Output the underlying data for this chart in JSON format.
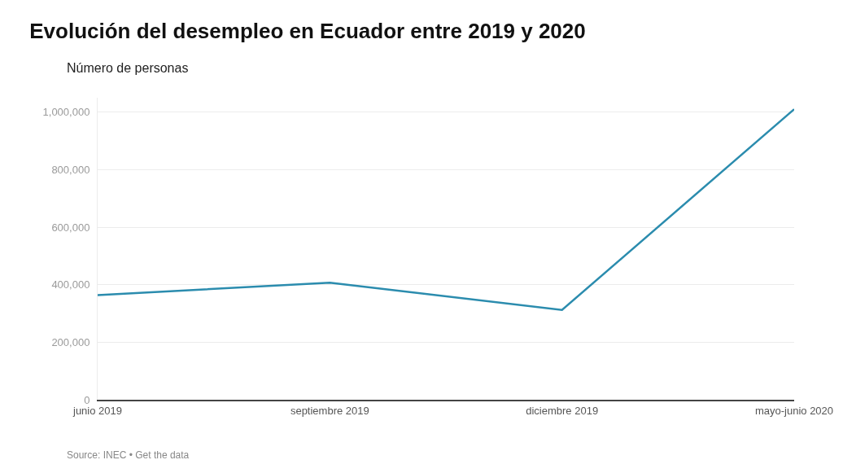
{
  "chart_data": {
    "type": "line",
    "title": "Evolución del desempleo en Ecuador entre 2019 y 2020",
    "subtitle": "Número de personas",
    "categories": [
      "junio 2019",
      "septiembre 2019",
      "diciembre 2019",
      "mayo-junio 2020"
    ],
    "series": [
      {
        "color": "#2b8cae",
        "values": [
          364000,
          407000,
          312000,
          1010000
        ]
      }
    ],
    "ylim": [
      0,
      1050000
    ],
    "yticks": [
      0,
      {
        "value": 200000,
        "label": "200,000"
      },
      {
        "value": 400000,
        "label": "400,000"
      },
      {
        "value": 600000,
        "label": "600,000"
      },
      {
        "value": 800000,
        "label": "800,000"
      },
      {
        "value": 1000000,
        "label": "1,000,000"
      }
    ],
    "grid": "y",
    "marker": "none",
    "line_style": "solid",
    "annotations": [
      "Source: INEC • Get the data"
    ]
  }
}
